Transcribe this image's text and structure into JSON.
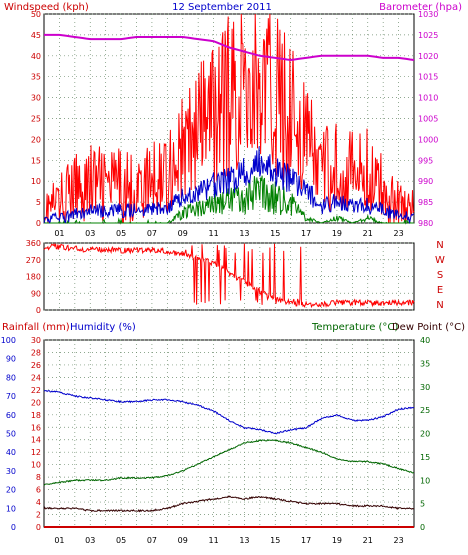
{
  "colors": {
    "windspeed": "#ff0000",
    "gust_avg": "#0000cc",
    "wind_min": "#008000",
    "barometer": "#cc00cc",
    "direction": "#ff0000",
    "humidity": "#0000cc",
    "temperature": "#006600",
    "dewpoint": "#330000",
    "rainfall": "#cc0000",
    "label_red": "#cc0000",
    "label_blue": "#0000cc",
    "label_green": "#006600"
  },
  "chart_data": [
    {
      "type": "line",
      "title": "12 September 2011",
      "ylabel": "Windspeed (kph)",
      "y2label": "Barometer (hpa)",
      "ylim": [
        0,
        50
      ],
      "y2lim": [
        980,
        1030
      ],
      "yticks": [
        "0",
        "5",
        "10",
        "15",
        "20",
        "25",
        "30",
        "35",
        "40",
        "45",
        "50"
      ],
      "y2ticks": [
        "980",
        "985",
        "990",
        "995",
        "1000",
        "1005",
        "1010",
        "1015",
        "1020",
        "1025",
        "1030"
      ],
      "xticks": [
        "01",
        "03",
        "05",
        "07",
        "09",
        "11",
        "13",
        "15",
        "17",
        "19",
        "21",
        "23"
      ],
      "grid": true,
      "x_hours": [
        0,
        1,
        2,
        3,
        4,
        5,
        6,
        7,
        8,
        9,
        10,
        11,
        12,
        13,
        14,
        15,
        16,
        17,
        18,
        19,
        20,
        21,
        22,
        23,
        24
      ],
      "series": [
        {
          "key": "gust",
          "values": [
            3,
            5,
            8,
            10,
            9,
            9,
            8,
            10,
            13,
            17,
            22,
            26,
            30,
            33,
            32,
            30,
            27,
            20,
            12,
            14,
            12,
            12,
            8,
            5,
            3
          ]
        },
        {
          "key": "avg",
          "values": [
            1,
            1,
            2,
            3,
            3,
            3,
            3,
            3,
            4,
            6,
            7,
            9,
            10,
            12,
            14,
            12,
            11,
            8,
            4,
            5,
            4,
            4,
            3,
            2,
            1
          ]
        },
        {
          "key": "min",
          "values": [
            0,
            0,
            0,
            0,
            0,
            0,
            0,
            0,
            0,
            2,
            3,
            4,
            5,
            5,
            6,
            5,
            4,
            1,
            0,
            1,
            0,
            1,
            0,
            0,
            0
          ]
        },
        {
          "key": "barometer",
          "values": [
            1025,
            1025,
            1024.5,
            1024,
            1024,
            1024,
            1024.5,
            1024.5,
            1024.5,
            1024.5,
            1024,
            1023.5,
            1022,
            1021,
            1020,
            1019.5,
            1019,
            1019.5,
            1020,
            1020,
            1020,
            1020,
            1019.5,
            1019.5,
            1019
          ]
        }
      ]
    },
    {
      "type": "scatter",
      "ylabel_letters": [
        "N",
        "W",
        "S",
        "E",
        "N"
      ],
      "yticks": [
        "0",
        "90",
        "180",
        "270",
        "360"
      ],
      "ylim": [
        0,
        360
      ],
      "grid": true,
      "x_hours": [
        0,
        1,
        2,
        3,
        4,
        5,
        6,
        7,
        8,
        9,
        10,
        11,
        12,
        13,
        14,
        15,
        16,
        17,
        18,
        19,
        20,
        21,
        22,
        23,
        24
      ],
      "direction_values": [
        340,
        340,
        330,
        325,
        325,
        320,
        320,
        320,
        315,
        300,
        280,
        250,
        200,
        150,
        100,
        60,
        40,
        30,
        30,
        40,
        40,
        40,
        35,
        40,
        40
      ]
    },
    {
      "type": "line",
      "ylabel_rain": "Rainfall (mm)",
      "ylabel_hum": "Humidity (%)",
      "ylabel_temp": "Temperature (°C)",
      "ylabel_dew": "Dew Point (°C)",
      "rain_ticks": [
        "0",
        "10",
        "20",
        "30",
        "40",
        "50",
        "60",
        "70",
        "80",
        "90",
        "100"
      ],
      "hum_ticks": [
        "0",
        "2",
        "4",
        "6",
        "8",
        "10",
        "12",
        "14",
        "16",
        "18",
        "20",
        "22",
        "24",
        "26",
        "28",
        "30"
      ],
      "temp_ticks": [
        "0",
        "5",
        "10",
        "15",
        "20",
        "25",
        "30",
        "35",
        "40"
      ],
      "rain_lim": [
        0,
        100
      ],
      "temp_lim": [
        0,
        40
      ],
      "grid": true,
      "x_hours": [
        0,
        1,
        2,
        3,
        4,
        5,
        6,
        7,
        8,
        9,
        10,
        11,
        12,
        13,
        14,
        15,
        16,
        17,
        18,
        19,
        20,
        21,
        22,
        23,
        24
      ],
      "series": [
        {
          "key": "humidity",
          "values": [
            73,
            72,
            70,
            69,
            68,
            67,
            67,
            68,
            68,
            67,
            65,
            62,
            57,
            53,
            52,
            50,
            52,
            53,
            58,
            60,
            57,
            57,
            59,
            63,
            64
          ]
        },
        {
          "key": "temperature",
          "values": [
            9,
            9.5,
            10,
            10,
            10,
            10.5,
            10.5,
            10.5,
            11,
            12,
            13.5,
            15,
            16.5,
            18,
            18.5,
            18.5,
            18,
            17,
            16,
            14.5,
            14,
            14,
            13.5,
            12.5,
            11.5
          ]
        },
        {
          "key": "dewpoint",
          "values": [
            4,
            4,
            4,
            3.5,
            3.5,
            3.5,
            3.5,
            3.5,
            4,
            5,
            5.5,
            6,
            6.5,
            6,
            6.5,
            6,
            5.5,
            5,
            5,
            5,
            4.5,
            4.5,
            4.5,
            4,
            4
          ]
        },
        {
          "key": "rainfall",
          "values": [
            0,
            0,
            0,
            0,
            0,
            0,
            0,
            0,
            0,
            0,
            0,
            0,
            0,
            0,
            0,
            0,
            0,
            0,
            0,
            0,
            0,
            0,
            0,
            0,
            0
          ]
        }
      ]
    }
  ]
}
